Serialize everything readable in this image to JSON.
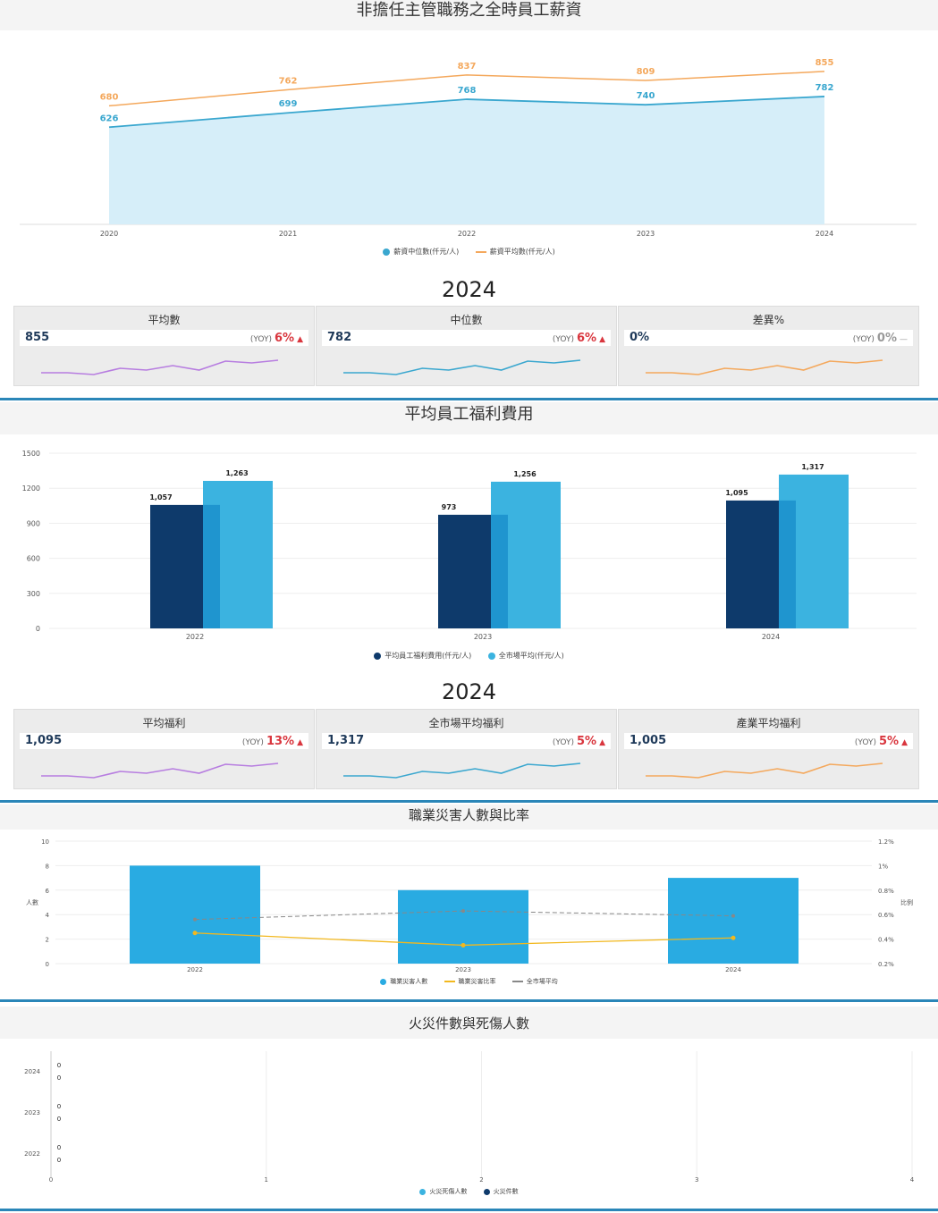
{
  "salary": {
    "title": "非擔任主管職務之全時員工薪資",
    "chart_data": {
      "type": "area",
      "categories": [
        "2020",
        "2021",
        "2022",
        "2023",
        "2024"
      ],
      "series": [
        {
          "name": "薪資中位數(仟元/人)",
          "values": [
            626,
            699,
            768,
            740,
            782
          ],
          "color": "#3aa7cf"
        },
        {
          "name": "薪資平均數(仟元/人)",
          "values": [
            680,
            762,
            837,
            809,
            855
          ],
          "color": "#f4a85c"
        }
      ]
    }
  },
  "year1": "2024",
  "cards1": [
    {
      "title": "平均數",
      "value": "855",
      "yoy": "(YOY)",
      "pct": "6%",
      "dir": "up",
      "color": "#b77de0"
    },
    {
      "title": "中位數",
      "value": "782",
      "yoy": "(YOY)",
      "pct": "6%",
      "dir": "up",
      "color": "#3aa7cf"
    },
    {
      "title": "差異%",
      "value": "0%",
      "yoy": "(YOY)",
      "pct": "0%",
      "dir": "flat",
      "color": "#f4a85c"
    }
  ],
  "spark": [
    0.2,
    0.2,
    0.1,
    0.45,
    0.35,
    0.6,
    0.35,
    0.85,
    0.75,
    0.9
  ],
  "welfare": {
    "title": "平均員工福利費用",
    "chart_data": {
      "type": "bar",
      "categories": [
        "2022",
        "2023",
        "2024"
      ],
      "ylim": [
        0,
        1500
      ],
      "yticks": [
        0,
        300,
        600,
        900,
        1200,
        1500
      ],
      "series": [
        {
          "name": "平均員工福利費用(仟元/人)",
          "values": [
            1057,
            973,
            1095
          ],
          "labels": [
            "1,057",
            "973",
            "1,095"
          ],
          "color": "#0e3a6b"
        },
        {
          "name": "全市場平均(仟元/人)",
          "values": [
            1263,
            1256,
            1317
          ],
          "labels": [
            "1,263",
            "1,256",
            "1,317"
          ],
          "color": "#3bb3e0"
        }
      ]
    }
  },
  "year2": "2024",
  "cards2": [
    {
      "title": "平均福利",
      "value": "1,095",
      "yoy": "(YOY)",
      "pct": "13%",
      "dir": "up",
      "color": "#b77de0"
    },
    {
      "title": "全市場平均福利",
      "value": "1,317",
      "yoy": "(YOY)",
      "pct": "5%",
      "dir": "up",
      "color": "#3aa7cf"
    },
    {
      "title": "產業平均福利",
      "value": "1,005",
      "yoy": "(YOY)",
      "pct": "5%",
      "dir": "up",
      "color": "#f4a85c"
    }
  ],
  "injury": {
    "title": "職業災害人數與比率",
    "chart_data": {
      "type": "bar",
      "categories": [
        "2022",
        "2023",
        "2024"
      ],
      "ylim": [
        0,
        10
      ],
      "yticks": [
        0,
        2,
        4,
        6,
        8,
        10
      ],
      "ylabel": "人數",
      "y2ticks": [
        "0.2%",
        "0.4%",
        "0.6%",
        "0.8%",
        "1%",
        "1.2%"
      ],
      "y2lim": [
        0.2,
        1.2
      ],
      "y2label": "比例",
      "series": [
        {
          "name": "職業災害人數",
          "values": [
            8,
            6,
            7
          ],
          "color": "#29abe2"
        },
        {
          "name": "職業災害比率",
          "values": [
            0.45,
            0.35,
            0.41
          ],
          "color": "#f2b81e"
        },
        {
          "name": "全市場平均",
          "values": [
            0.56,
            0.63,
            0.59
          ],
          "color": "#888888"
        }
      ]
    }
  },
  "fire": {
    "title": "火災件數與死傷人數",
    "chart_data": {
      "type": "bar",
      "orientation": "horizontal",
      "categories": [
        "2024",
        "2023",
        "2022"
      ],
      "xticks": [
        "0",
        "1",
        "2",
        "3",
        "4"
      ],
      "series": [
        {
          "name": "火災死傷人數",
          "values": [
            0,
            0,
            0
          ],
          "color": "#3bb3e0"
        },
        {
          "name": "火災件數",
          "values": [
            0,
            0,
            0
          ],
          "color": "#0e3a6b"
        }
      ]
    }
  }
}
